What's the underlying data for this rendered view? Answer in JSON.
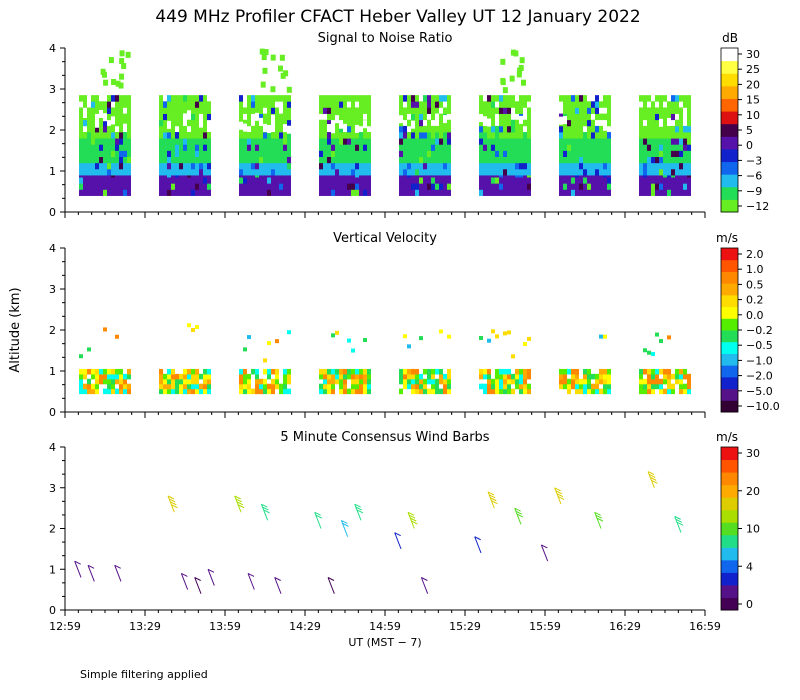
{
  "title": "449 MHz Profiler CFACT Heber Valley UT 12 January 2022",
  "footnote": "Simple filtering applied",
  "colors": {
    "snr": [
      "#66ee22",
      "#22dd55",
      "#22bbee",
      "#1166ee",
      "#1122cc",
      "#5511aa",
      "#44004a",
      "#dd1111",
      "#ff6600",
      "#ffaa00",
      "#ffdd00",
      "#ffff44",
      "#ffffff"
    ],
    "vv": [
      "#330033",
      "#551188",
      "#1122cc",
      "#1166ee",
      "#22bbee",
      "#00ffee",
      "#22dd55",
      "#55ee00",
      "#ffff00",
      "#ffdd00",
      "#ffaa00",
      "#ff8800",
      "#ff5500",
      "#ee1111"
    ],
    "wind": [
      "#440055",
      "#551188",
      "#1122cc",
      "#1166ee",
      "#22bbee",
      "#22dd88",
      "#55dd22",
      "#aadd00",
      "#ddcc00",
      "#ffaa00",
      "#ff8800",
      "#ff5500",
      "#ee1111"
    ]
  },
  "chart_data": [
    {
      "type": "heatmap",
      "title": "Signal to Noise Ratio",
      "xlabel": "",
      "ylabel": "",
      "ylim": [
        0,
        4
      ],
      "yticks": [
        "0",
        "1",
        "2",
        "3",
        "4"
      ],
      "colorbar_unit": "dB",
      "colorbar_labels": [
        "30",
        "25",
        "20",
        "15",
        "10",
        "5",
        "0",
        "−3",
        "−6",
        "−9",
        "−12"
      ],
      "time_blocks": [
        [
          "12:59",
          "13:25"
        ],
        [
          "13:29",
          "13:55"
        ],
        [
          "13:59",
          "14:25"
        ],
        [
          "14:29",
          "14:55"
        ],
        [
          "14:59",
          "15:25"
        ],
        [
          "15:29",
          "15:55"
        ],
        [
          "15:59",
          "16:25"
        ],
        [
          "16:29",
          "16:55"
        ]
      ],
      "levels_approx": [
        {
          "from_km": 0.4,
          "to_km": 0.9,
          "value_db": 0
        },
        {
          "from_km": 0.9,
          "to_km": 1.2,
          "value_db": -6
        },
        {
          "from_km": 1.2,
          "to_km": 1.8,
          "value_db": -9
        },
        {
          "from_km": 1.8,
          "to_km": 2.8,
          "value_db": -12
        }
      ]
    },
    {
      "type": "heatmap",
      "title": "Vertical Velocity",
      "ylabel": "Altitude (km)",
      "ylim": [
        0,
        4
      ],
      "yticks": [
        "0",
        "1",
        "2",
        "3",
        "4"
      ],
      "colorbar_unit": "m/s",
      "colorbar_labels": [
        "2.0",
        "1.0",
        "0.5",
        "0.2",
        "0.0",
        "−0.2",
        "−0.5",
        "−1.0",
        "−2.0",
        "−5.0",
        "−10.0"
      ]
    },
    {
      "type": "scatter",
      "title": "5 Minute Consensus Wind Barbs",
      "xlabel": "UT  (MST − 7)",
      "ylim": [
        0,
        4
      ],
      "yticks": [
        "0",
        "1",
        "2",
        "3",
        "4"
      ],
      "xticks": [
        "12:59",
        "13:29",
        "13:59",
        "14:29",
        "14:59",
        "15:29",
        "15:59",
        "16:29",
        "16:59"
      ],
      "colorbar_unit": "m/s",
      "colorbar_labels": [
        "30",
        "20",
        "10",
        "4",
        "0"
      ],
      "points": [
        {
          "t": "13:05",
          "alt_km": 0.8,
          "speed_ms": 2
        },
        {
          "t": "13:10",
          "alt_km": 0.7,
          "speed_ms": 2
        },
        {
          "t": "13:20",
          "alt_km": 0.7,
          "speed_ms": 3
        },
        {
          "t": "13:40",
          "alt_km": 2.4,
          "speed_ms": 20
        },
        {
          "t": "13:45",
          "alt_km": 0.5,
          "speed_ms": 2
        },
        {
          "t": "13:50",
          "alt_km": 0.4,
          "speed_ms": 1
        },
        {
          "t": "13:55",
          "alt_km": 0.6,
          "speed_ms": 2
        },
        {
          "t": "14:05",
          "alt_km": 2.4,
          "speed_ms": 18
        },
        {
          "t": "14:10",
          "alt_km": 0.5,
          "speed_ms": 2
        },
        {
          "t": "14:15",
          "alt_km": 2.2,
          "speed_ms": 14
        },
        {
          "t": "14:20",
          "alt_km": 0.4,
          "speed_ms": 2
        },
        {
          "t": "14:35",
          "alt_km": 2.0,
          "speed_ms": 12
        },
        {
          "t": "14:40",
          "alt_km": 0.4,
          "speed_ms": 1
        },
        {
          "t": "14:45",
          "alt_km": 1.8,
          "speed_ms": 11
        },
        {
          "t": "14:50",
          "alt_km": 2.2,
          "speed_ms": 13
        },
        {
          "t": "15:05",
          "alt_km": 1.5,
          "speed_ms": 6
        },
        {
          "t": "15:10",
          "alt_km": 2.0,
          "speed_ms": 18
        },
        {
          "t": "15:15",
          "alt_km": 0.4,
          "speed_ms": 3
        },
        {
          "t": "15:35",
          "alt_km": 1.4,
          "speed_ms": 5
        },
        {
          "t": "15:40",
          "alt_km": 2.5,
          "speed_ms": 20
        },
        {
          "t": "15:50",
          "alt_km": 2.1,
          "speed_ms": 15
        },
        {
          "t": "16:00",
          "alt_km": 1.2,
          "speed_ms": 3
        },
        {
          "t": "16:05",
          "alt_km": 2.6,
          "speed_ms": 20
        },
        {
          "t": "16:20",
          "alt_km": 2.0,
          "speed_ms": 15
        },
        {
          "t": "16:40",
          "alt_km": 3.0,
          "speed_ms": 20
        },
        {
          "t": "16:50",
          "alt_km": 1.9,
          "speed_ms": 14
        }
      ]
    }
  ]
}
